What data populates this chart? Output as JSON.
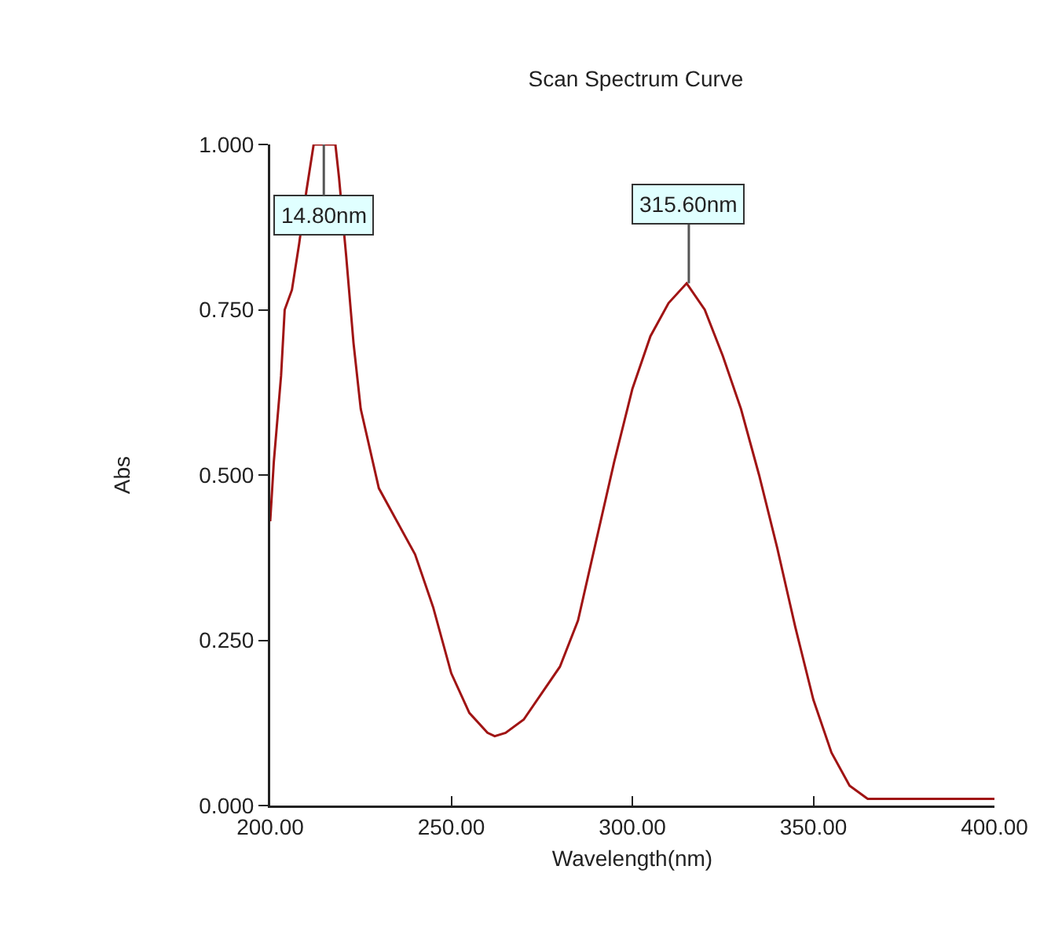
{
  "chart_data": {
    "type": "line",
    "title": "Scan Spectrum Curve",
    "xlabel": "Wavelength(nm)",
    "ylabel": "Abs",
    "x": [
      200,
      201,
      203,
      204,
      206,
      208,
      210,
      212,
      214,
      216,
      218,
      219,
      221,
      223,
      225,
      230,
      235,
      240,
      245,
      250,
      255,
      260,
      262,
      265,
      270,
      275,
      280,
      285,
      290,
      295,
      300,
      305,
      310,
      315,
      320,
      325,
      330,
      335,
      340,
      345,
      350,
      355,
      360,
      365,
      370,
      380,
      390,
      400
    ],
    "series": [
      {
        "color": "#a01414",
        "values": [
          0.43,
          0.52,
          0.65,
          0.75,
          0.78,
          0.85,
          0.93,
          1.0,
          1.0,
          1.0,
          1.0,
          0.95,
          0.83,
          0.7,
          0.6,
          0.48,
          0.43,
          0.38,
          0.3,
          0.2,
          0.14,
          0.11,
          0.105,
          0.11,
          0.13,
          0.17,
          0.21,
          0.28,
          0.4,
          0.52,
          0.63,
          0.71,
          0.76,
          0.79,
          0.75,
          0.68,
          0.6,
          0.5,
          0.39,
          0.27,
          0.16,
          0.08,
          0.03,
          0.01,
          0.01,
          0.01,
          0.01,
          0.01
        ]
      }
    ],
    "xlim": [
      200,
      400
    ],
    "xticks": [
      {
        "value": 200,
        "label": "200.00"
      },
      {
        "value": 250,
        "label": "250.00"
      },
      {
        "value": 300,
        "label": "300.00"
      },
      {
        "value": 350,
        "label": "350.00"
      },
      {
        "value": 400,
        "label": "400.00"
      }
    ],
    "ylim": [
      0,
      1
    ],
    "yticks": [
      {
        "value": 0,
        "label": "0.000"
      },
      {
        "value": 0.25,
        "label": "0.250"
      },
      {
        "value": 0.5,
        "label": "0.500"
      },
      {
        "value": 0.75,
        "label": "0.750"
      },
      {
        "value": 1,
        "label": "1.000"
      }
    ],
    "annotations": [
      {
        "text": "14.80nm",
        "x": 214.8,
        "y": 1.0
      },
      {
        "text": "315.60nm",
        "x": 315.6,
        "y": 0.79
      }
    ],
    "grid": false,
    "legend": false,
    "marker": "none",
    "line_style": "solid"
  }
}
